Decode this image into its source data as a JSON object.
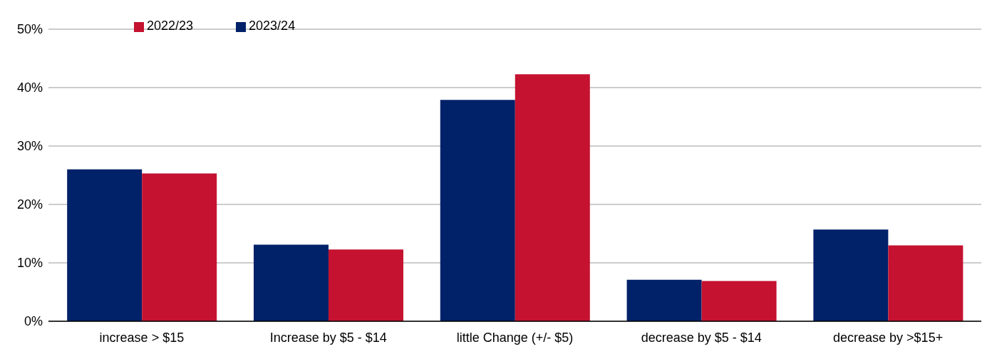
{
  "chart_data": {
    "type": "bar",
    "categories": [
      "increase > $15",
      "Increase by $5 - $14",
      "little Change (+/- $5)",
      "decrease by $5 - $14",
      "decrease by >$15+"
    ],
    "series": [
      {
        "name": "2023/24",
        "color": "#012169",
        "values": [
          26.0,
          13.1,
          37.9,
          7.1,
          15.7
        ]
      },
      {
        "name": "2022/23",
        "color": "#c41230",
        "values": [
          25.3,
          12.3,
          42.3,
          6.9,
          13.0
        ]
      }
    ],
    "ylim": [
      0,
      50
    ],
    "yticks": [
      {
        "value": 0,
        "label": "0%"
      },
      {
        "value": 10,
        "label": "10%"
      },
      {
        "value": 20,
        "label": "20%"
      },
      {
        "value": 30,
        "label": "30%"
      },
      {
        "value": 40,
        "label": "40%"
      },
      {
        "value": 50,
        "label": "50%"
      }
    ],
    "grid": "y",
    "legend": "top left"
  }
}
